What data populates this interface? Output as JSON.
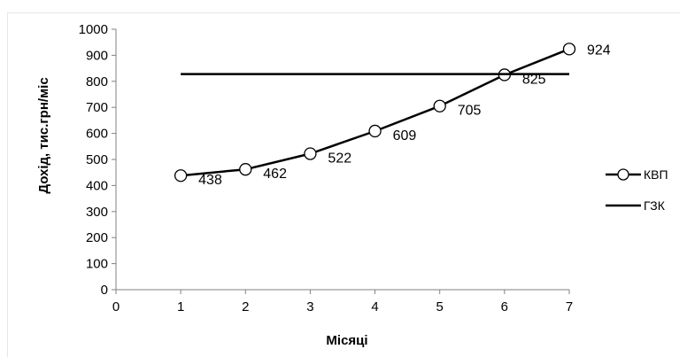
{
  "chart_data": {
    "type": "line",
    "xlabel": "Місяці",
    "ylabel": "Дохід, тис.грн/міс",
    "xlim": [
      0,
      7
    ],
    "ylim": [
      0,
      1000
    ],
    "x_ticks": [
      "0",
      "1",
      "2",
      "3",
      "4",
      "5",
      "6",
      "7"
    ],
    "y_ticks": [
      "0",
      "100",
      "200",
      "300",
      "400",
      "500",
      "600",
      "700",
      "800",
      "900",
      "1000"
    ],
    "grid": false,
    "legend_position": "right",
    "series": [
      {
        "name": "КВП",
        "marker": "circle",
        "color": "#000000",
        "x": [
          1,
          2,
          3,
          4,
          5,
          6,
          7
        ],
        "y": [
          438,
          462,
          522,
          609,
          705,
          825,
          924
        ],
        "labels": [
          "438",
          "462",
          "522",
          "609",
          "705",
          "825",
          "924"
        ]
      },
      {
        "name": "ГЗК",
        "marker": "none",
        "color": "#000000",
        "x": [
          1,
          7
        ],
        "y": [
          828,
          828
        ]
      }
    ]
  }
}
